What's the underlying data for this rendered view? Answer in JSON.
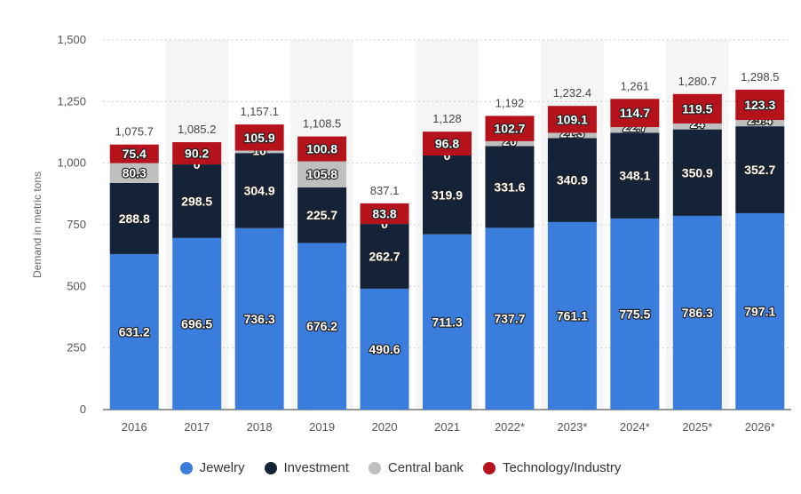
{
  "chart_data": {
    "type": "bar",
    "stacked": true,
    "ylabel": "Demand in metric tons",
    "ylim": [
      0,
      1500
    ],
    "yticks": [
      0,
      250,
      500,
      750,
      1000,
      1250,
      1500
    ],
    "ytick_labels": [
      "0",
      "250",
      "500",
      "750",
      "1,000",
      "1,250",
      "1,500"
    ],
    "categories": [
      "2016",
      "2017",
      "2018",
      "2019",
      "2020",
      "2021",
      "2022*",
      "2023*",
      "2024*",
      "2025*",
      "2026*"
    ],
    "totals": [
      "1,075.7",
      "1,085.2",
      "1,157.1",
      "1,108.5",
      "837.1",
      "1,128",
      "1,192",
      "1,232.4",
      "1,261",
      "1,280.7",
      "1,298.5"
    ],
    "series": [
      {
        "name": "Jewelry",
        "color": "#3b7ddd",
        "values": [
          631.2,
          696.5,
          736.3,
          676.2,
          490.6,
          711.3,
          737.7,
          761.1,
          775.5,
          786.3,
          797.1
        ]
      },
      {
        "name": "Investment",
        "color": "#142337",
        "values": [
          288.8,
          298.5,
          304.9,
          225.7,
          262.7,
          319.9,
          331.6,
          340.9,
          348.1,
          350.9,
          352.7
        ]
      },
      {
        "name": "Central bank",
        "color": "#bfbfbf",
        "values": [
          80.3,
          0,
          10,
          105.8,
          0,
          0,
          20,
          21.3,
          22.7,
          24,
          25.4
        ]
      },
      {
        "name": "Technology/Industry",
        "color": "#b5121b",
        "values": [
          75.4,
          90.2,
          105.9,
          100.8,
          83.8,
          96.8,
          102.7,
          109.1,
          114.7,
          119.5,
          123.3
        ]
      }
    ],
    "legend": [
      "Jewelry",
      "Investment",
      "Central bank",
      "Technology/Industry"
    ],
    "legend_position": "bottom",
    "grid": true
  }
}
